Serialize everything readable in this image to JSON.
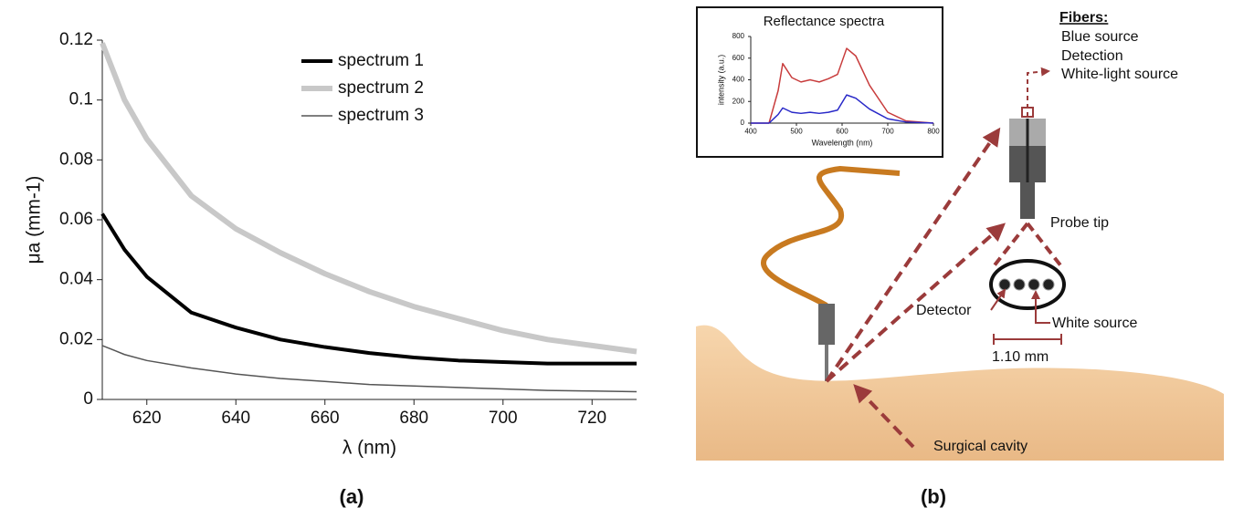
{
  "chart_data": [
    {
      "type": "line",
      "x_label": "λ (nm)",
      "y_label": "μa (mm-1)",
      "xlim": [
        610,
        730
      ],
      "xticks": [
        620,
        640,
        660,
        680,
        700,
        720
      ],
      "ylim": [
        0,
        0.12
      ],
      "yticks": [
        0,
        0.02,
        0.04,
        0.06,
        0.08,
        0.1,
        0.12
      ],
      "x": [
        610,
        615,
        620,
        630,
        640,
        650,
        660,
        670,
        680,
        690,
        700,
        710,
        720,
        730
      ],
      "series": [
        {
          "name": "spectrum 1",
          "color": "#000000",
          "line_width": 4,
          "values": [
            0.062,
            0.05,
            0.041,
            0.029,
            0.024,
            0.02,
            0.0175,
            0.0155,
            0.014,
            0.013,
            0.0125,
            0.012,
            0.012,
            0.012
          ]
        },
        {
          "name": "spectrum 2",
          "color": "#c8c8c8",
          "line_width": 6,
          "values": [
            0.119,
            0.1,
            0.087,
            0.068,
            0.057,
            0.049,
            0.042,
            0.036,
            0.031,
            0.027,
            0.023,
            0.02,
            0.018,
            0.016
          ]
        },
        {
          "name": "spectrum 3",
          "color": "#555555",
          "line_width": 1.5,
          "values": [
            0.018,
            0.015,
            0.013,
            0.0105,
            0.0085,
            0.007,
            0.006,
            0.005,
            0.0045,
            0.004,
            0.0035,
            0.003,
            0.0028,
            0.0026
          ]
        }
      ]
    },
    {
      "type": "line",
      "title": "Reflectance spectra",
      "x_label": "Wavelength (nm)",
      "y_label": "intensity (a.u.)",
      "xlim": [
        400,
        800
      ],
      "xticks": [
        400,
        500,
        600,
        700,
        800
      ],
      "ylim": [
        0,
        800
      ],
      "yticks": [
        0,
        200,
        400,
        600,
        800
      ],
      "x": [
        400,
        440,
        460,
        470,
        490,
        510,
        530,
        550,
        570,
        590,
        610,
        630,
        660,
        700,
        740,
        800
      ],
      "series": [
        {
          "color": "#c83c3c",
          "line_width": 1.5,
          "values": [
            0,
            0,
            300,
            550,
            420,
            380,
            400,
            380,
            410,
            450,
            690,
            620,
            350,
            100,
            20,
            0
          ]
        },
        {
          "color": "#2828c8",
          "line_width": 1.5,
          "values": [
            0,
            0,
            80,
            140,
            100,
            90,
            100,
            90,
            100,
            120,
            260,
            230,
            130,
            40,
            10,
            0
          ]
        }
      ]
    }
  ],
  "diagram": {
    "fibers_title": "Fibers:",
    "fibers": [
      "Blue source",
      "Detection",
      "White-light source"
    ],
    "probe_tip": "Probe tip",
    "detector": "Detector",
    "white_source": "White source",
    "scale": "1.10 mm",
    "surgical_cavity": "Surgical cavity"
  },
  "panel_labels": [
    "(a)",
    "(b)"
  ]
}
